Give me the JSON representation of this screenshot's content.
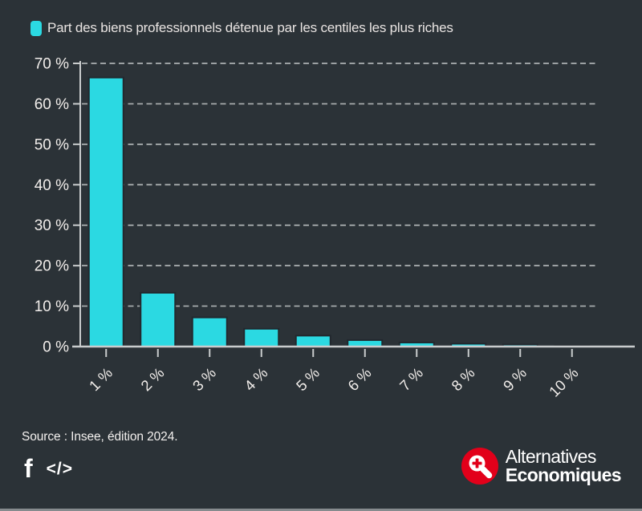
{
  "colors": {
    "background": "#2b3237",
    "bar": "#2bd9e2",
    "bar_stroke": "#22282e",
    "grid": "#adb1b3",
    "axis": "#c9cccd",
    "tick_text": "#f2eeeb",
    "brand_red": "#e2001a",
    "white": "#ffffff"
  },
  "chart_data": {
    "type": "bar",
    "title": "Part des biens professionnels détenue par les centiles les plus riches",
    "categories": [
      "1 %",
      "2 %",
      "3 %",
      "4 %",
      "5 %",
      "6 %",
      "7 %",
      "8 %",
      "9 %",
      "10 %"
    ],
    "values": [
      66.5,
      13.3,
      7.2,
      4.4,
      2.7,
      1.6,
      1.0,
      0.7,
      0.5,
      0.25
    ],
    "unit": "%",
    "xlabel": "",
    "ylabel": "",
    "ylim": [
      0,
      70
    ],
    "yticks": [
      0,
      10,
      20,
      30,
      40,
      50,
      60,
      70
    ],
    "ytick_suffix": " %",
    "grid": "horizontal-dashed",
    "legend_position": "top-left"
  },
  "footer": {
    "source": "Source : Insee, édition 2024.",
    "facebook_icon_glyph": "f",
    "embed_icon_glyph": "</>",
    "brand_line1": "Alternatives",
    "brand_line2": "Economiques"
  }
}
